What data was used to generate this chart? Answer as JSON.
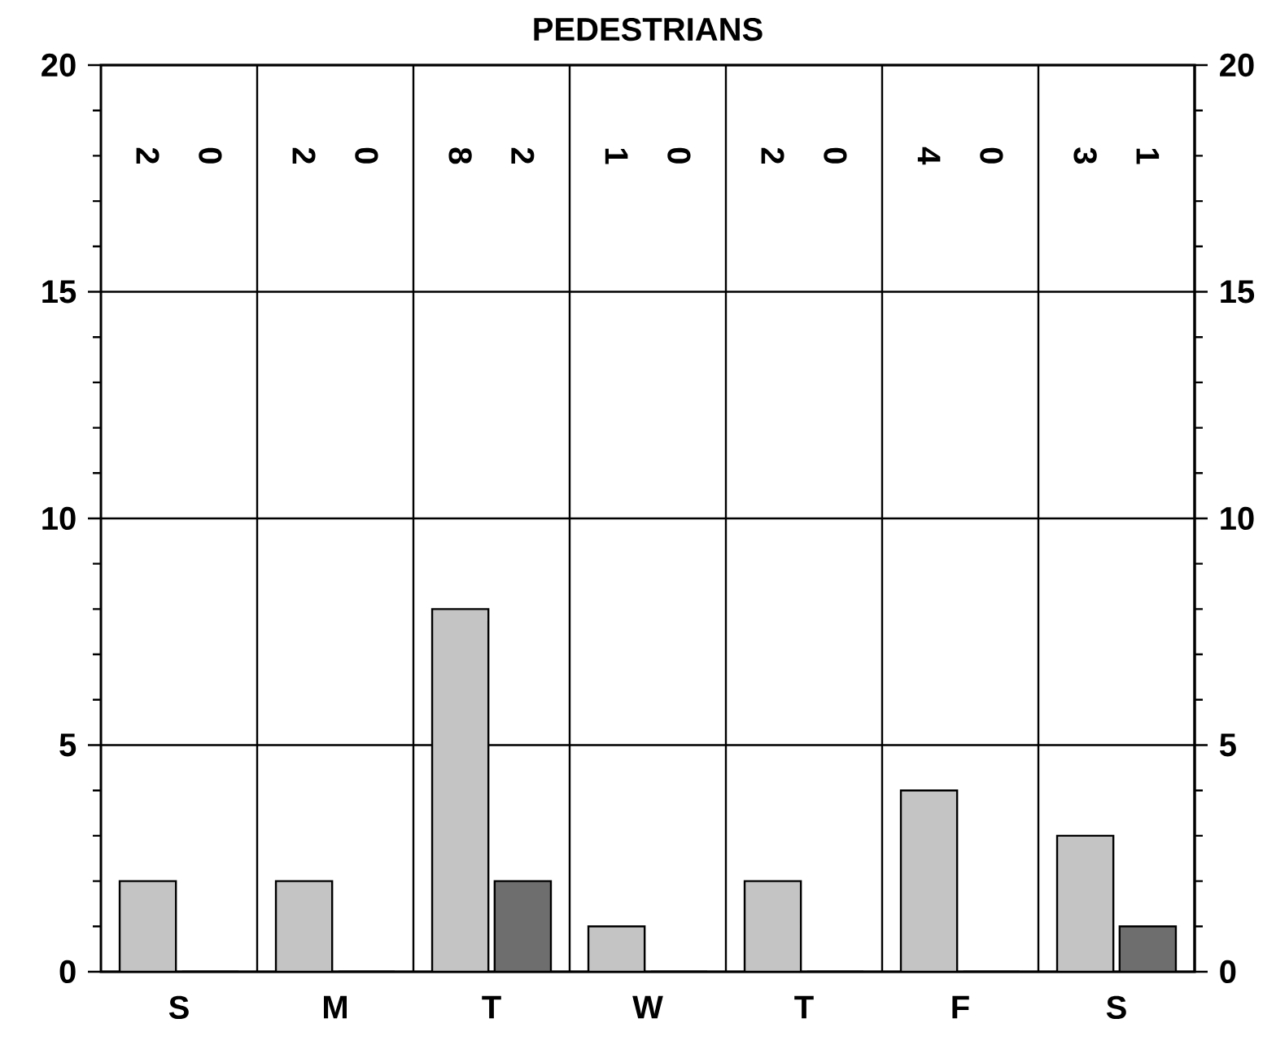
{
  "chart_data": {
    "type": "bar",
    "title": "PEDESTRIANS",
    "categories": [
      "S",
      "M",
      "T",
      "W",
      "T",
      "F",
      "S"
    ],
    "series": [
      {
        "color": "#c4c4c4",
        "values": [
          2,
          2,
          8,
          1,
          2,
          4,
          3
        ]
      },
      {
        "color": "#6e6e6e",
        "values": [
          0,
          0,
          2,
          0,
          0,
          0,
          1
        ]
      }
    ],
    "annotations": [
      "2",
      "2",
      "8",
      "1",
      "2",
      "4",
      "3",
      "0",
      "0",
      "2",
      "0",
      "0",
      "0",
      "1"
    ],
    "ylim": [
      0,
      20
    ],
    "yticks": [
      0,
      5,
      10,
      15,
      20
    ],
    "y2lim": [
      0,
      20
    ],
    "y2ticks": [
      0,
      5,
      10,
      15,
      20
    ],
    "grid": true
  }
}
